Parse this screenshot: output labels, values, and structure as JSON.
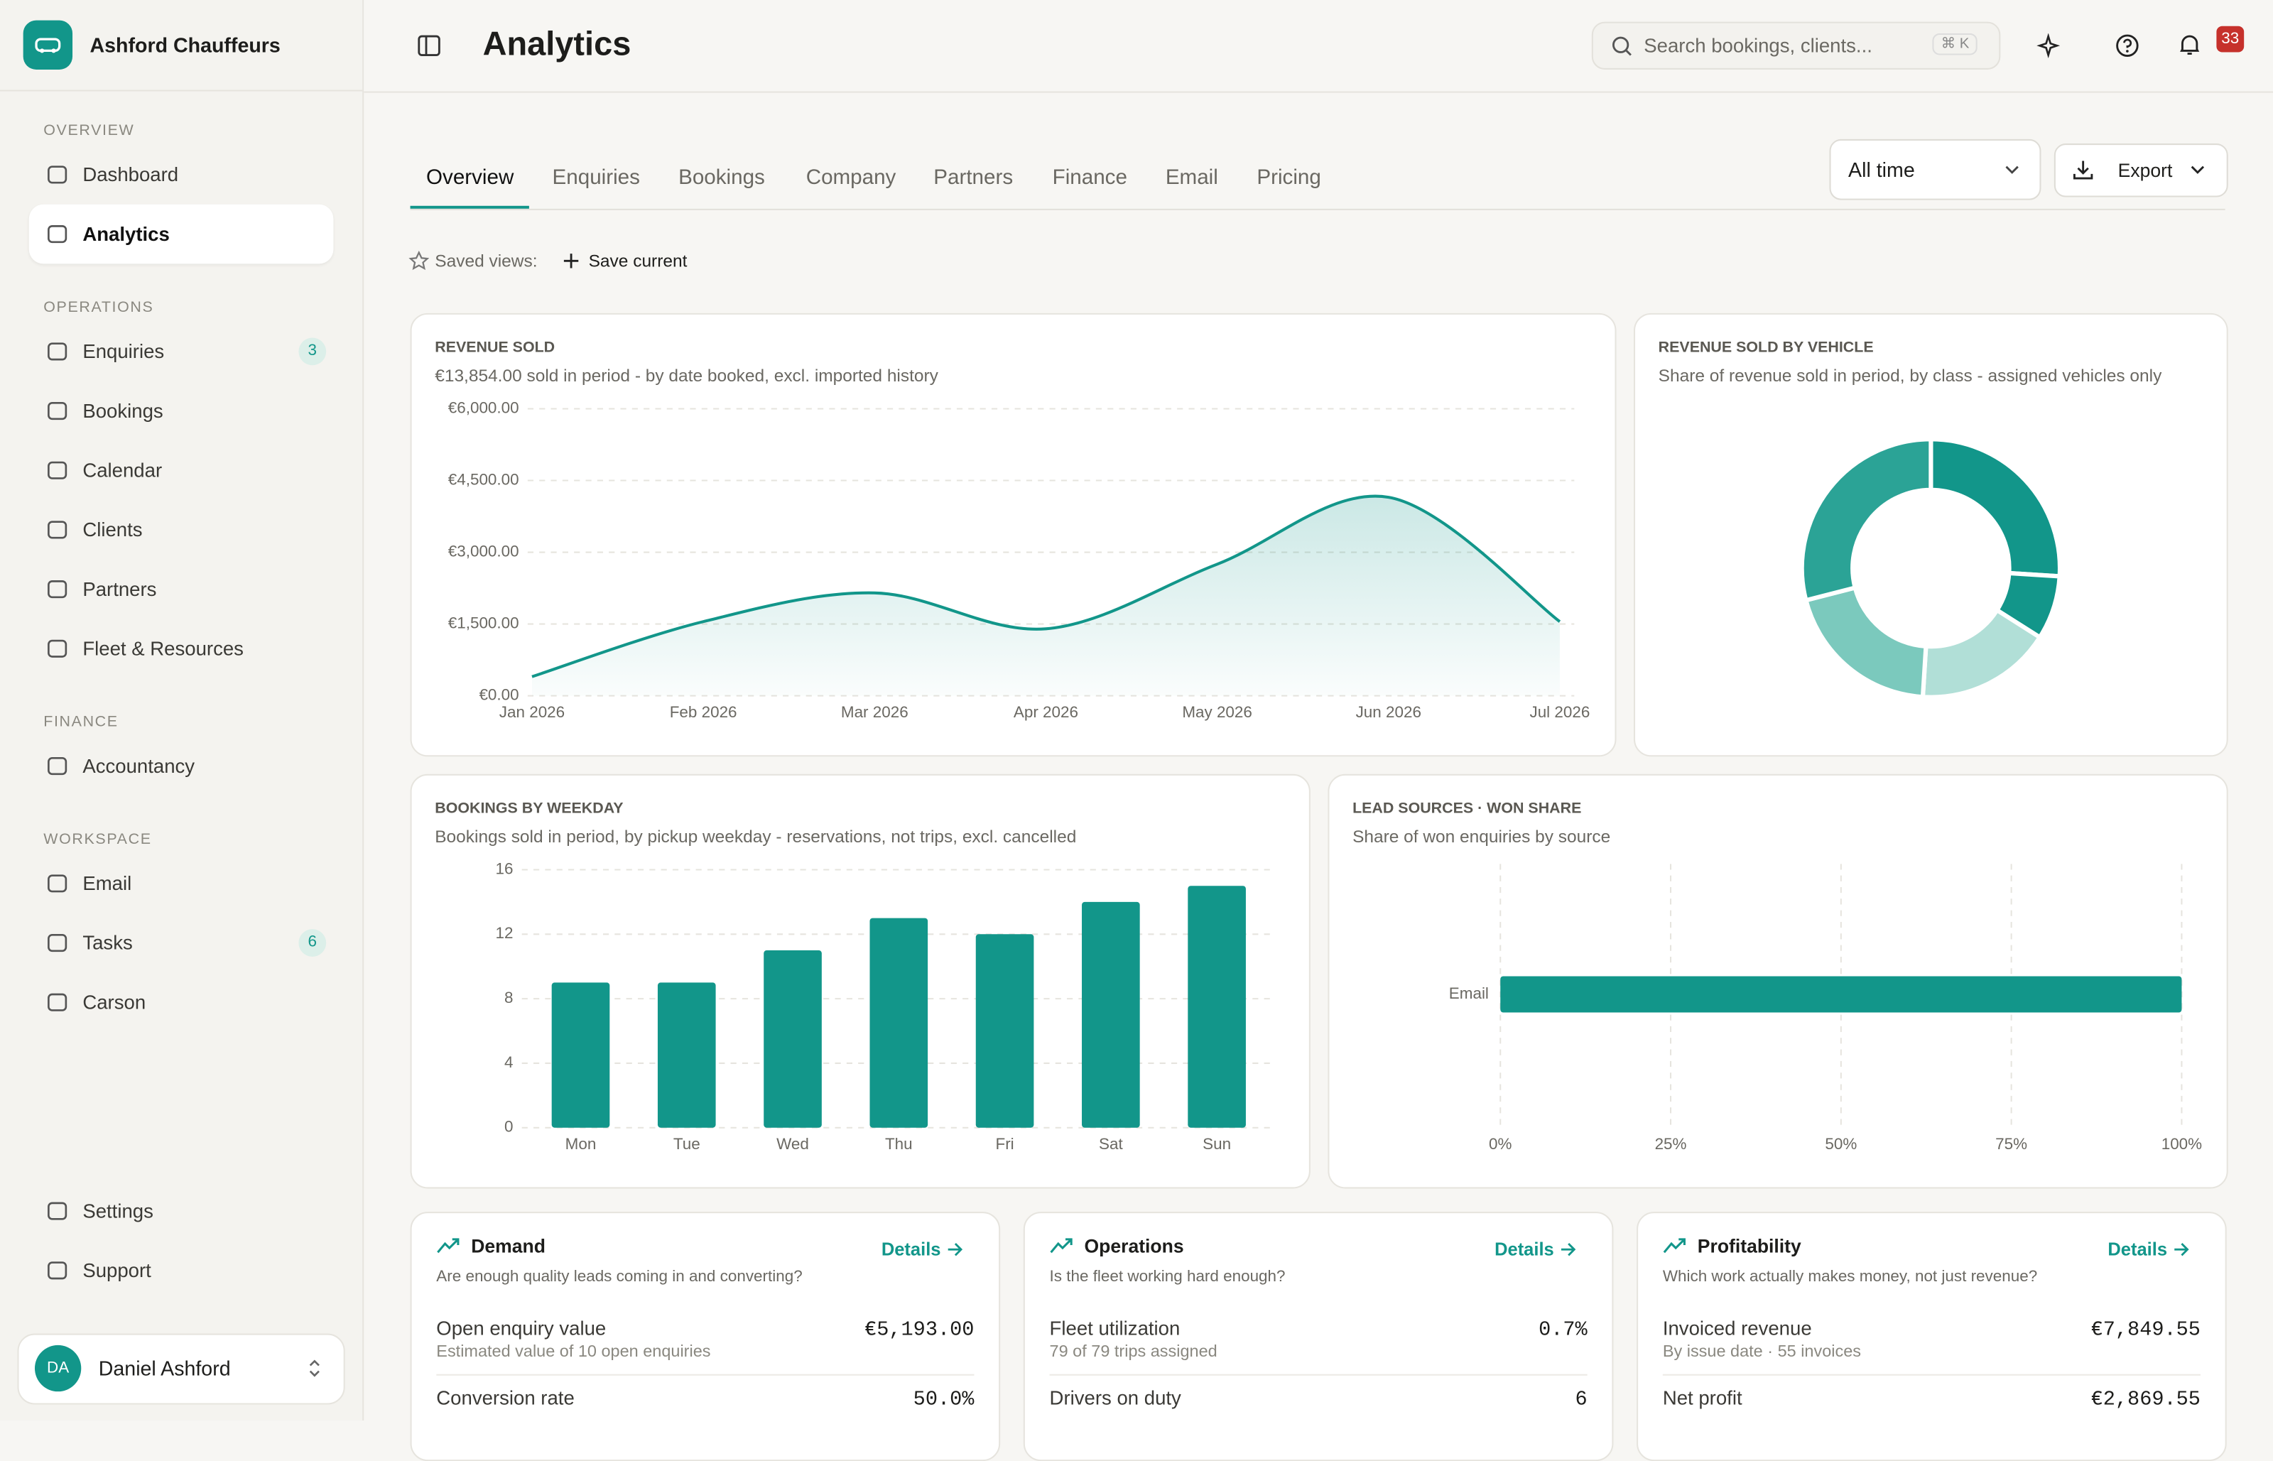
{
  "sidebar": {
    "brand": "Ashford Chauffeurs",
    "sections": [
      {
        "title": "OVERVIEW",
        "items": [
          {
            "label": "Dashboard"
          },
          {
            "label": "Analytics",
            "active": true
          }
        ]
      },
      {
        "title": "OPERATIONS",
        "items": [
          {
            "label": "Enquiries",
            "badge": 3
          },
          {
            "label": "Bookings"
          },
          {
            "label": "Calendar"
          },
          {
            "label": "Clients"
          },
          {
            "label": "Partners"
          },
          {
            "label": "Fleet & Resources"
          }
        ]
      },
      {
        "title": "FINANCE",
        "items": [
          {
            "label": "Accountancy"
          }
        ]
      },
      {
        "title": "WORKSPACE",
        "items": [
          {
            "label": "Email"
          },
          {
            "label": "Tasks",
            "badge": 6
          },
          {
            "label": "Carson"
          }
        ]
      }
    ],
    "footer_items": [
      {
        "label": "Settings"
      },
      {
        "label": "Support"
      }
    ],
    "user": {
      "initials": "DA",
      "name": "Daniel Ashford"
    }
  },
  "header": {
    "title": "Analytics",
    "search_placeholder": "Search bookings, clients...",
    "shortcut": "⌘ K",
    "notifications": 33
  },
  "tabs": [
    {
      "label": "Overview",
      "active": true
    },
    {
      "label": "Enquiries"
    },
    {
      "label": "Bookings"
    },
    {
      "label": "Company"
    },
    {
      "label": "Partners"
    },
    {
      "label": "Finance"
    },
    {
      "label": "Email"
    },
    {
      "label": "Pricing"
    }
  ],
  "filter": "All time",
  "export": "Export",
  "saved_views_label": "Saved views:",
  "save_current": "Save current",
  "chart_data": [
    {
      "type": "line",
      "title": "REVENUE SOLD",
      "subtitle": "€13,854.00 sold in period - by date booked, excl. imported history",
      "categories": [
        "Jan 2026",
        "Feb 2026",
        "Mar 2026",
        "Apr 2026",
        "May 2026",
        "Jun 2026",
        "Jul 2026"
      ],
      "values": [
        400,
        1550,
        2150,
        1400,
        2750,
        4150,
        1550
      ],
      "color": "#12968a",
      "ylim": [
        0,
        6000
      ],
      "yticks": [
        {
          "value": 0,
          "label": "€0.00"
        },
        {
          "value": 1500,
          "label": "€1,500.00"
        },
        {
          "value": 3000,
          "label": "€3,000.00"
        },
        {
          "value": 4500,
          "label": "€4,500.00"
        },
        {
          "value": 6000,
          "label": "€6,000.00"
        }
      ],
      "grid": true
    },
    {
      "type": "donut",
      "title": "REVENUE SOLD BY VEHICLE",
      "subtitle": "Share of revenue sold in period, by class - assigned vehicles only",
      "values": [
        26,
        8,
        17,
        20,
        29
      ],
      "colors": [
        "#12968a",
        "#12968a",
        "#b1dfd7",
        "#7bc9bd",
        "#2ba396"
      ]
    },
    {
      "type": "bar",
      "title": "BOOKINGS BY WEEKDAY",
      "subtitle": "Bookings sold in period, by pickup weekday - reservations, not trips, excl. cancelled",
      "categories": [
        "Mon",
        "Tue",
        "Wed",
        "Thu",
        "Fri",
        "Sat",
        "Sun"
      ],
      "values": [
        9,
        9,
        11,
        13,
        12,
        14,
        15
      ],
      "color": "#12968a",
      "ylim": [
        0,
        16
      ],
      "yticks": [
        0,
        4,
        8,
        12,
        16
      ],
      "grid": true
    },
    {
      "type": "hbar",
      "title": "LEAD SOURCES · WON SHARE",
      "subtitle": "Share of won enquiries by source",
      "categories": [
        "Email"
      ],
      "values": [
        100
      ],
      "color": "#12968a",
      "xlim": [
        0,
        100
      ],
      "xticks": [
        {
          "value": 0,
          "label": "0%"
        },
        {
          "value": 25,
          "label": "25%"
        },
        {
          "value": 50,
          "label": "50%"
        },
        {
          "value": 75,
          "label": "75%"
        },
        {
          "value": 100,
          "label": "100%"
        }
      ],
      "grid": true
    }
  ],
  "kpi_cards": [
    {
      "title": "Demand",
      "details": "Details",
      "question": "Are enough quality leads coming in and converting?",
      "rows": [
        {
          "label": "Open enquiry value",
          "sub": "Estimated value of 10 open enquiries",
          "value": "€5,193.00"
        },
        {
          "label": "Conversion rate",
          "value": "50.0%"
        }
      ]
    },
    {
      "title": "Operations",
      "details": "Details",
      "question": "Is the fleet working hard enough?",
      "rows": [
        {
          "label": "Fleet utilization",
          "sub": "79 of 79 trips assigned",
          "value": "0.7%"
        },
        {
          "label": "Drivers on duty",
          "value": "6"
        }
      ]
    },
    {
      "title": "Profitability",
      "details": "Details",
      "question": "Which work actually makes money, not just revenue?",
      "rows": [
        {
          "label": "Invoiced revenue",
          "sub": "By issue date · 55 invoices",
          "value": "€7,849.55"
        },
        {
          "label": "Net profit",
          "value": "€2,869.55"
        }
      ]
    }
  ]
}
